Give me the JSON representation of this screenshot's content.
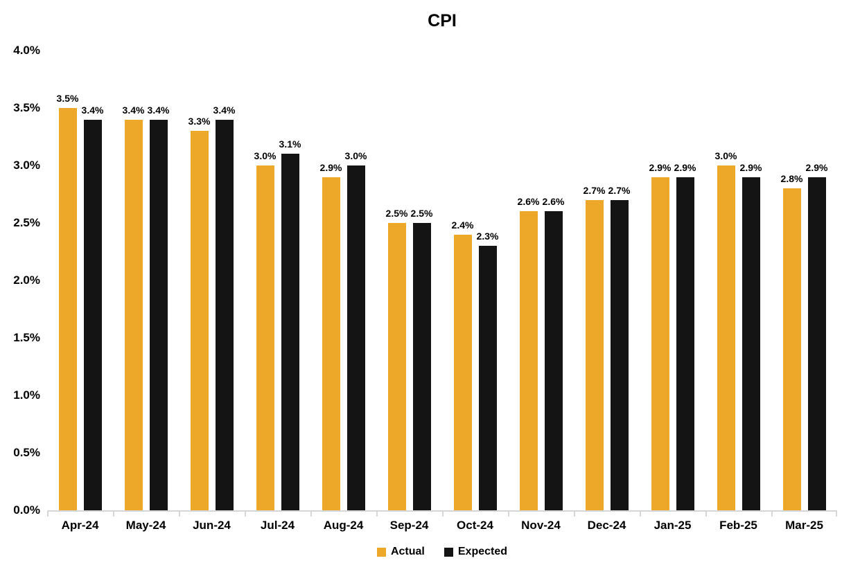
{
  "title": "CPI",
  "chart_data": {
    "type": "bar",
    "title": "CPI",
    "categories": [
      "Apr-24",
      "May-24",
      "Jun-24",
      "Jul-24",
      "Aug-24",
      "Sep-24",
      "Oct-24",
      "Nov-24",
      "Dec-24",
      "Jan-25",
      "Feb-25",
      "Mar-25"
    ],
    "series": [
      {
        "name": "Actual",
        "color": "#EDA82A",
        "values": [
          3.5,
          3.4,
          3.3,
          3.0,
          2.9,
          2.5,
          2.4,
          2.6,
          2.7,
          2.9,
          3.0,
          2.8
        ],
        "labels": [
          "3.5%",
          "3.4%",
          "3.3%",
          "3.0%",
          "2.9%",
          "2.5%",
          "2.4%",
          "2.6%",
          "2.7%",
          "2.9%",
          "3.0%",
          "2.8%"
        ]
      },
      {
        "name": "Expected",
        "color": "#141414",
        "values": [
          3.4,
          3.4,
          3.4,
          3.1,
          3.0,
          2.5,
          2.3,
          2.6,
          2.7,
          2.9,
          2.9,
          2.9
        ],
        "labels": [
          "3.4%",
          "3.4%",
          "3.4%",
          "3.1%",
          "3.0%",
          "2.5%",
          "2.3%",
          "2.6%",
          "2.7%",
          "2.9%",
          "2.9%",
          "2.9%"
        ]
      }
    ],
    "xlabel": "",
    "ylabel": "",
    "ylim": [
      0.0,
      4.0
    ],
    "ytick_step": 0.5,
    "yticks": [
      "0.0%",
      "0.5%",
      "1.0%",
      "1.5%",
      "2.0%",
      "2.5%",
      "3.0%",
      "3.5%",
      "4.0%"
    ],
    "grid": false,
    "legend_position": "bottom",
    "data_labels": true
  },
  "colors": {
    "actual": "#EDA82A",
    "expected": "#141414",
    "axis_line": "#d6d6d6",
    "text": "#000000",
    "background": "#ffffff"
  }
}
